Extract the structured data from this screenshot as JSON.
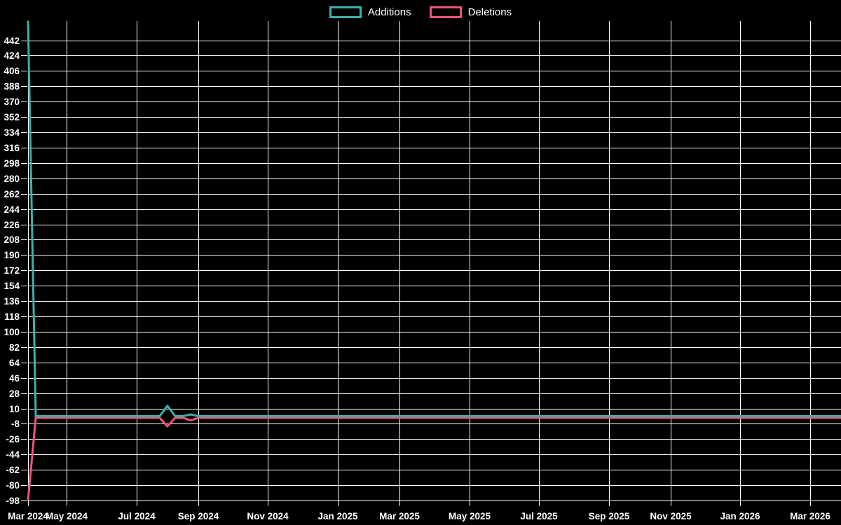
{
  "legend": {
    "items": [
      {
        "label": "Additions",
        "color": "#3cb0ac"
      },
      {
        "label": "Deletions",
        "color": "#f0547a"
      }
    ]
  },
  "chart_data": {
    "type": "line",
    "title": "",
    "legend_position": "top-center",
    "grid": true,
    "background_color": "#000000",
    "grid_color": "#ffffff",
    "text_color": "#ffffff",
    "x_axis": {
      "unit": "week",
      "total_points": 106,
      "tick_labels": [
        "Mar 2024",
        "May 2024",
        "Jul 2024",
        "Sep 2024",
        "Nov 2024",
        "Jan 2025",
        "Mar 2025",
        "May 2025",
        "Jul 2025",
        "Sep 2025",
        "Nov 2025",
        "Jan 2026",
        "Mar 2026"
      ],
      "tick_week_indices": [
        0,
        5,
        14,
        22,
        31,
        40,
        48,
        57,
        66,
        75,
        83,
        92,
        101
      ]
    },
    "y_axis": {
      "ticks": [
        442,
        424,
        406,
        388,
        370,
        352,
        334,
        316,
        298,
        280,
        262,
        244,
        226,
        208,
        190,
        172,
        154,
        136,
        118,
        100,
        82,
        64,
        46,
        28,
        10,
        -8,
        -26,
        -44,
        -62,
        -80,
        -98
      ],
      "tick_step": 18,
      "range": [
        -98,
        465
      ]
    },
    "series": [
      {
        "name": "Additions",
        "color": "#3cb0ac",
        "flat_value": 1,
        "spikes": {
          "0": 465,
          "18": 13,
          "21": 3
        }
      },
      {
        "name": "Deletions",
        "color": "#f0547a",
        "flat_value": -1,
        "spikes": {
          "0": -98,
          "18": -11,
          "21": -4
        }
      }
    ]
  }
}
